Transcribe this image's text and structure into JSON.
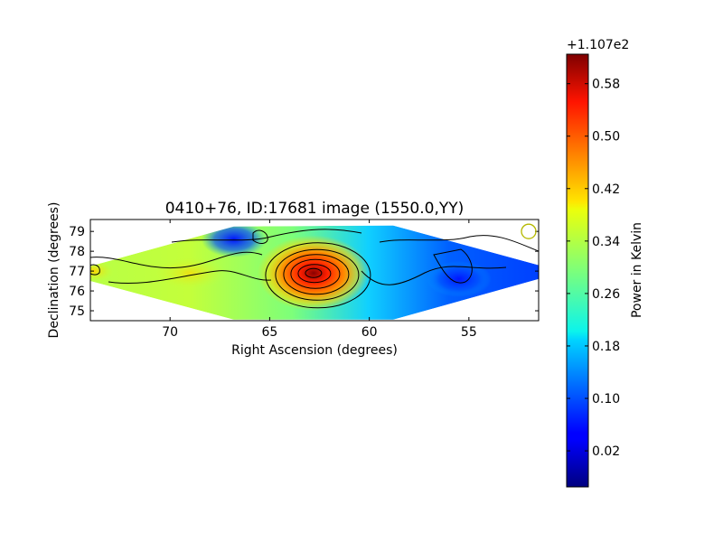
{
  "chart_data": {
    "type": "heatmap",
    "title": "0410+76, ID:17681 image (1550.0,YY)",
    "xlabel": "Right Ascension (degrees)",
    "ylabel": "Declination (degrees)",
    "xlim": [
      74.0,
      51.5
    ],
    "ylim": [
      74.5,
      79.6
    ],
    "x_ticks": [
      "70",
      "65",
      "60",
      "55"
    ],
    "x_tick_values": [
      70,
      65,
      60,
      55
    ],
    "y_ticks": [
      "75",
      "76",
      "77",
      "78",
      "79"
    ],
    "y_tick_values": [
      75,
      76,
      77,
      78,
      79
    ],
    "colormap": "jet",
    "colorbar": {
      "label": "Power in Kelvin",
      "offset_label": "+1.107e2",
      "range": [
        -0.035,
        0.625
      ],
      "ticks": [
        "0.02",
        "0.10",
        "0.18",
        "0.26",
        "0.34",
        "0.42",
        "0.50",
        "0.58"
      ],
      "tick_values": [
        0.02,
        0.1,
        0.18,
        0.26,
        0.34,
        0.42,
        0.5,
        0.58
      ]
    },
    "coverage_polygon": [
      [
        74.0,
        77.25
      ],
      [
        66.8,
        79.25
      ],
      [
        58.8,
        79.3
      ],
      [
        51.5,
        77.3
      ],
      [
        51.5,
        76.6
      ],
      [
        58.8,
        74.55
      ],
      [
        66.8,
        74.55
      ],
      [
        74.0,
        76.5
      ]
    ],
    "features": [
      {
        "kind": "peak",
        "ra": 62.8,
        "dec": 76.9,
        "value": 0.6
      },
      {
        "kind": "local-max",
        "ra": 73.8,
        "dec": 77.0,
        "value": 0.4
      },
      {
        "kind": "minimum",
        "ra": 55.5,
        "dec": 76.6,
        "value": 0.05
      },
      {
        "kind": "minimum",
        "ra": 66.8,
        "dec": 78.6,
        "value": 0.1
      }
    ],
    "beam_marker": {
      "ra": 52.0,
      "dec": 79.0,
      "color": "#b5b800"
    }
  }
}
